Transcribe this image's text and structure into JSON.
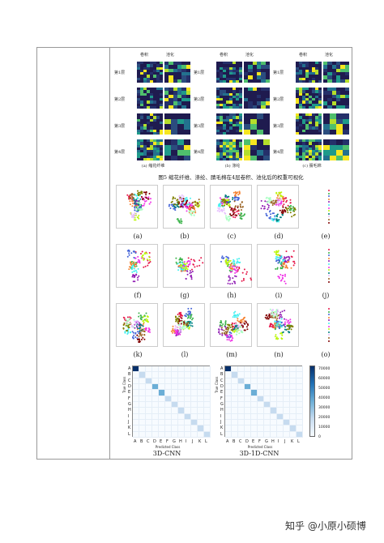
{
  "figure5": {
    "col_headers": [
      "卷积",
      "池化"
    ],
    "row_labels": [
      "第1层",
      "第2层",
      "第3层",
      "第4层"
    ],
    "panel_captions": [
      "(a) 缩花纤维",
      "(b) 涤纶",
      "(c) 腈毛棉"
    ],
    "title": "图5  缩花纤维、涤纶、腈毛棉在4层卷积、池化后的权重可视化"
  },
  "tsne": {
    "panel_labels": [
      "(a)",
      "(b)",
      "(c)",
      "(d)",
      "(e)",
      "(f)",
      "(g)",
      "(h)",
      "(i)",
      "(j)",
      "(k)",
      "(l)",
      "(m)",
      "(n)",
      "(o)"
    ]
  },
  "confusion": {
    "classes": [
      "A",
      "B",
      "C",
      "D",
      "E",
      "F",
      "G",
      "H",
      "I",
      "J",
      "K",
      "L"
    ],
    "xlabel": "Predicted Class",
    "ylabel": "True Class",
    "matrices": [
      {
        "name": "3D-CNN"
      },
      {
        "name": "3D-1D-CNN"
      }
    ],
    "colorbar_ticks": [
      "70000",
      "60000",
      "50000",
      "40000",
      "30000",
      "20000",
      "10000",
      "0"
    ]
  },
  "colors": {
    "border": "#999999",
    "heat_dark": "#1f1b4f",
    "cm_high": "#08306b",
    "cm_low": "#f7fbff"
  },
  "watermark": "知乎 @小原小硕博"
}
